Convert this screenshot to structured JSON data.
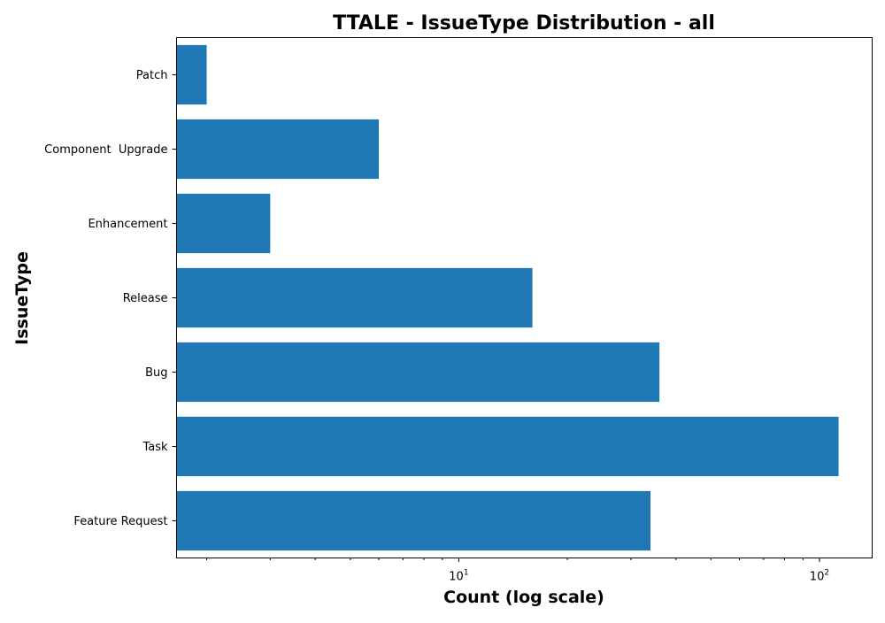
{
  "chart_data": {
    "type": "bar",
    "orientation": "horizontal",
    "title": "TTALE - IssueType Distribution - all",
    "xlabel": "Count (log scale)",
    "ylabel": "IssueType",
    "x_scale": "log",
    "xlim": [
      1.65,
      140
    ],
    "x_tick_labels": [
      {
        "base": "10",
        "exp": "1",
        "value": 10
      },
      {
        "base": "10",
        "exp": "2",
        "value": 100
      }
    ],
    "categories": [
      "Feature Request",
      "Task",
      "Bug",
      "Release",
      "Enhancement",
      "Component  Upgrade",
      "Patch"
    ],
    "values": [
      34,
      113,
      36,
      16,
      3,
      6,
      2
    ],
    "bar_color": "#1f77b4",
    "grid": false,
    "legend": "none"
  }
}
